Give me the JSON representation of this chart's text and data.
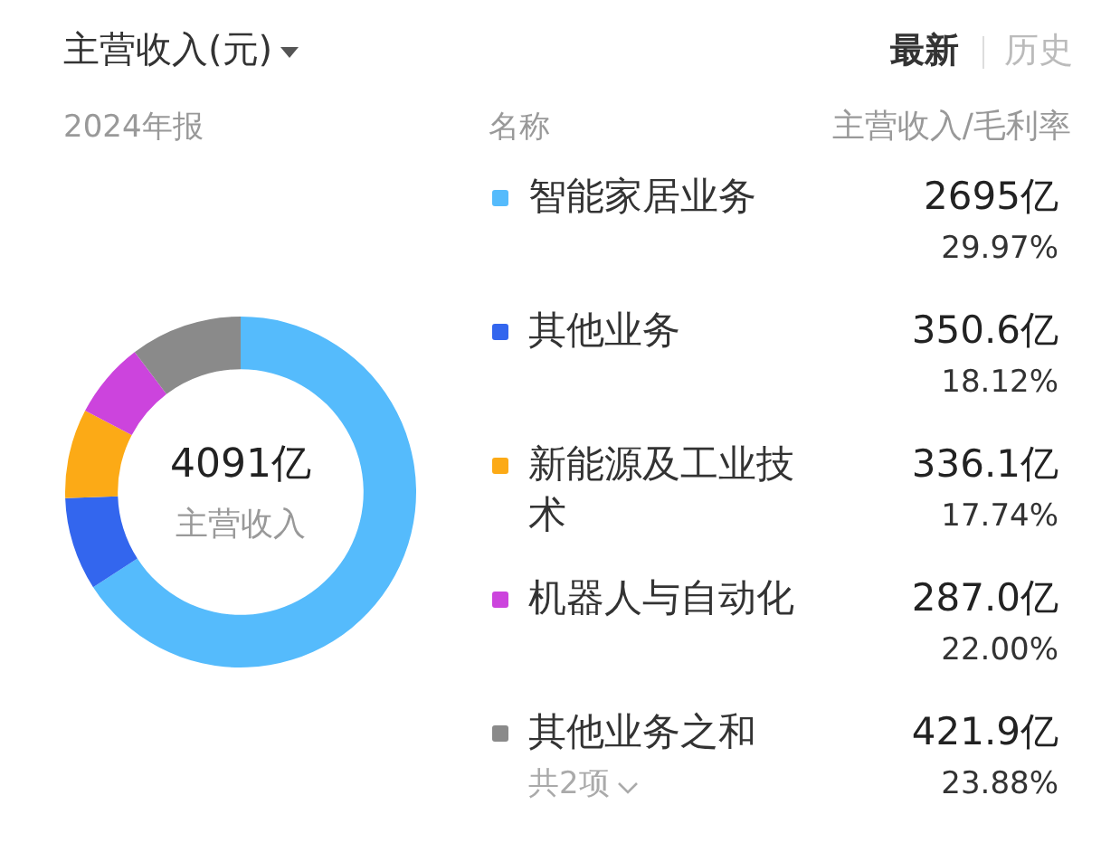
{
  "chart_data": {
    "type": "donut",
    "title": "主营收入(元)",
    "subtitle": "2024年报",
    "legend_title": "名称",
    "legend": "right",
    "categories": [
      "智能家居业务",
      "其他业务",
      "新能源及工业技术",
      "机器人与自动化",
      "其他业务之和"
    ],
    "values": [
      2695,
      350.6,
      336.1,
      287.0,
      421.9
    ],
    "colors": [
      "#55bbfc",
      "#3366ee",
      "#fcaa16",
      "#cc44dd",
      "#8a8a8a"
    ],
    "value_labels": [
      "2695亿",
      "350.6亿",
      "336.1亿",
      "287.0亿",
      "421.9亿"
    ],
    "annotations": [
      "4091亿",
      "主营收入",
      "主营收入/毛利率",
      "共2项",
      "最新",
      "历史",
      {
        "text": "29.97%",
        "x": "智能家居业务"
      },
      {
        "text": "18.12%",
        "x": "其他业务"
      },
      {
        "text": "17.74%",
        "x": "新能源及工业技术"
      },
      {
        "text": "22.00%",
        "x": "机器人与自动化"
      },
      {
        "text": "23.88%",
        "x": "其他业务之和"
      }
    ]
  }
}
